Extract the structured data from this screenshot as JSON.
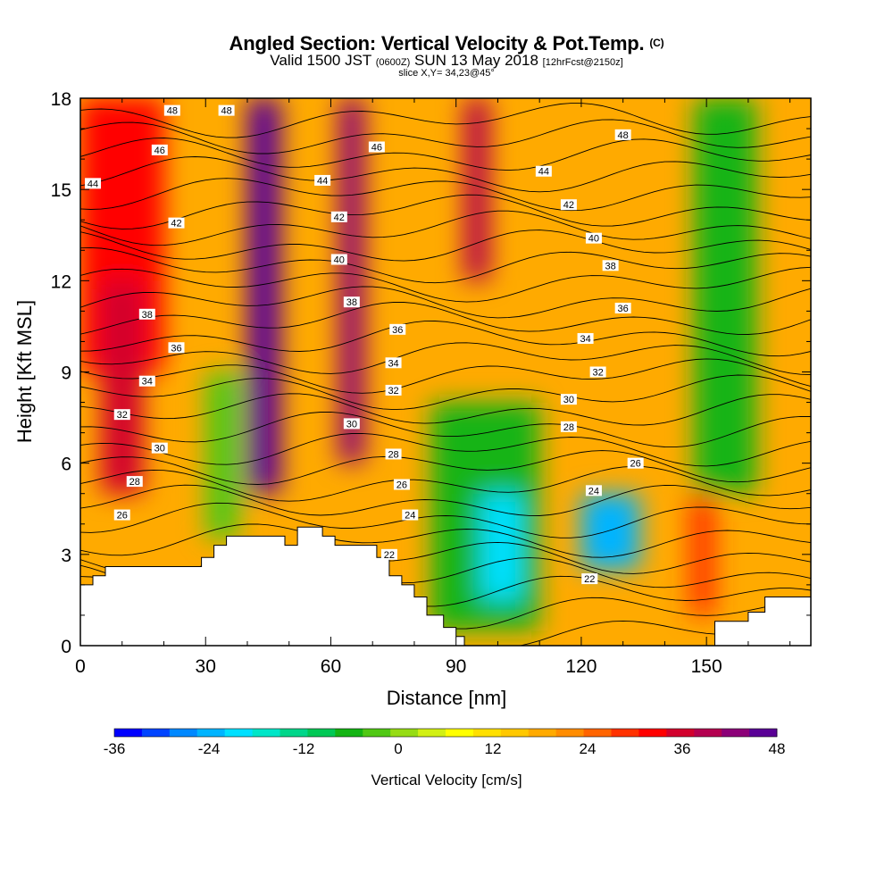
{
  "title": {
    "main": "Angled Section: Vertical Velocity & Pot.Temp.",
    "main_small": "(C)",
    "valid_prefix": "Valid 1500 JST",
    "valid_utc": "(0600Z)",
    "valid_date": "SUN 13 May 2018",
    "fcst": "[12hrFcst@2150z]",
    "slice": "slice X,Y= 34,23@45°"
  },
  "chart_data": {
    "type": "heatmap",
    "title": "Angled Section: Vertical Velocity & Pot.Temp. (C)",
    "xlabel": "Distance [nm]",
    "ylabel": "Height [Kft MSL]",
    "xlim": [
      0,
      175
    ],
    "ylim": [
      0,
      18
    ],
    "x_ticks": [
      "0",
      "30",
      "60",
      "90",
      "120",
      "150"
    ],
    "y_ticks": [
      "0",
      "3",
      "6",
      "9",
      "12",
      "15",
      "18"
    ],
    "x_tick_values": [
      0,
      30,
      60,
      90,
      120,
      150
    ],
    "y_tick_values": [
      0,
      3,
      6,
      9,
      12,
      15,
      18
    ],
    "colorbar": {
      "label": "Vertical Velocity [cm/s]",
      "tick_labels": [
        "-36",
        "-24",
        "-12",
        "0",
        "12",
        "24",
        "36",
        "48"
      ],
      "tick_values": [
        -36,
        -24,
        -12,
        0,
        12,
        24,
        36,
        48
      ],
      "min": -36,
      "max": 48,
      "colors": [
        "#0000ff",
        "#0044ff",
        "#0088ff",
        "#00b4ff",
        "#00e0ff",
        "#00e6c8",
        "#00d68a",
        "#00c855",
        "#14b414",
        "#50c814",
        "#96dc14",
        "#d2f014",
        "#ffff00",
        "#ffe000",
        "#ffc800",
        "#ffaa00",
        "#ff8c00",
        "#ff6400",
        "#ff3200",
        "#ff0000",
        "#d2002d",
        "#b40050",
        "#8c0078",
        "#5a0096"
      ]
    },
    "velocity_cells": [
      {
        "x": [
          0,
          20
        ],
        "z": [
          9,
          18
        ],
        "w": 33
      },
      {
        "x": [
          5,
          15
        ],
        "z": [
          5,
          12
        ],
        "w": 36
      },
      {
        "x": [
          30,
          38
        ],
        "z": [
          3.5,
          9
        ],
        "w": -2
      },
      {
        "x": [
          40,
          48
        ],
        "z": [
          5,
          18
        ],
        "w": 45
      },
      {
        "x": [
          62,
          68
        ],
        "z": [
          6,
          18
        ],
        "w": 42
      },
      {
        "x": [
          84,
          110
        ],
        "z": [
          0.5,
          8
        ],
        "w": -6
      },
      {
        "x": [
          96,
          106
        ],
        "z": [
          1.5,
          5
        ],
        "w": -22
      },
      {
        "x": [
          92,
          98
        ],
        "z": [
          12,
          18
        ],
        "w": 40
      },
      {
        "x": [
          120,
          134
        ],
        "z": [
          2.5,
          5
        ],
        "w": -24
      },
      {
        "x": [
          146,
          152
        ],
        "z": [
          1,
          5
        ],
        "w": 30
      },
      {
        "x": [
          147,
          162
        ],
        "z": [
          5,
          18
        ],
        "w": -6
      }
    ],
    "theta_contour_labels": [
      "48",
      "48",
      "46",
      "44",
      "42",
      "38",
      "36",
      "34",
      "32",
      "30",
      "28",
      "26",
      "44",
      "42",
      "40",
      "38",
      "30",
      "46",
      "36",
      "34",
      "32",
      "28",
      "26",
      "24",
      "22",
      "44",
      "42",
      "40",
      "38",
      "36",
      "34",
      "32",
      "30",
      "28",
      "26",
      "24",
      "48",
      "22"
    ],
    "theta_labels": [
      {
        "text": "48",
        "x": 22,
        "z": 17.6
      },
      {
        "text": "48",
        "x": 35,
        "z": 17.6
      },
      {
        "text": "46",
        "x": 19,
        "z": 16.3
      },
      {
        "text": "44",
        "x": 3,
        "z": 15.2
      },
      {
        "text": "42",
        "x": 23,
        "z": 13.9
      },
      {
        "text": "38",
        "x": 16,
        "z": 10.9
      },
      {
        "text": "36",
        "x": 23,
        "z": 9.8
      },
      {
        "text": "34",
        "x": 16,
        "z": 8.7
      },
      {
        "text": "32",
        "x": 10,
        "z": 7.6
      },
      {
        "text": "30",
        "x": 19,
        "z": 6.5
      },
      {
        "text": "28",
        "x": 13,
        "z": 5.4
      },
      {
        "text": "26",
        "x": 10,
        "z": 4.3
      },
      {
        "text": "44",
        "x": 58,
        "z": 15.3
      },
      {
        "text": "42",
        "x": 62,
        "z": 14.1
      },
      {
        "text": "40",
        "x": 62,
        "z": 12.7
      },
      {
        "text": "38",
        "x": 65,
        "z": 11.3
      },
      {
        "text": "30",
        "x": 65,
        "z": 7.3
      },
      {
        "text": "46",
        "x": 71,
        "z": 16.4
      },
      {
        "text": "36",
        "x": 76,
        "z": 10.4
      },
      {
        "text": "34",
        "x": 75,
        "z": 9.3
      },
      {
        "text": "32",
        "x": 75,
        "z": 8.4
      },
      {
        "text": "28",
        "x": 75,
        "z": 6.3
      },
      {
        "text": "26",
        "x": 77,
        "z": 5.3
      },
      {
        "text": "24",
        "x": 79,
        "z": 4.3
      },
      {
        "text": "22",
        "x": 74,
        "z": 3.0
      },
      {
        "text": "44",
        "x": 111,
        "z": 15.6
      },
      {
        "text": "42",
        "x": 117,
        "z": 14.5
      },
      {
        "text": "40",
        "x": 123,
        "z": 13.4
      },
      {
        "text": "38",
        "x": 127,
        "z": 12.5
      },
      {
        "text": "36",
        "x": 130,
        "z": 11.1
      },
      {
        "text": "34",
        "x": 121,
        "z": 10.1
      },
      {
        "text": "32",
        "x": 124,
        "z": 9.0
      },
      {
        "text": "30",
        "x": 117,
        "z": 8.1
      },
      {
        "text": "28",
        "x": 117,
        "z": 7.2
      },
      {
        "text": "26",
        "x": 133,
        "z": 6.0
      },
      {
        "text": "24",
        "x": 123,
        "z": 5.1
      },
      {
        "text": "48",
        "x": 130,
        "z": 16.8
      },
      {
        "text": "22",
        "x": 122,
        "z": 2.2
      }
    ],
    "theta_contours": [
      20,
      21,
      22,
      23,
      24,
      25,
      26,
      27,
      28,
      29,
      30,
      31,
      32,
      33,
      34,
      35,
      36,
      37,
      38,
      39,
      40,
      41,
      42,
      43,
      44,
      45,
      46,
      47,
      48
    ],
    "terrain": [
      [
        0,
        2
      ],
      [
        3,
        2
      ],
      [
        3,
        2.3
      ],
      [
        6,
        2.3
      ],
      [
        6,
        2.6
      ],
      [
        29,
        2.6
      ],
      [
        29,
        2.9
      ],
      [
        32,
        2.9
      ],
      [
        32,
        3.3
      ],
      [
        35,
        3.3
      ],
      [
        35,
        3.6
      ],
      [
        49,
        3.6
      ],
      [
        49,
        3.3
      ],
      [
        52,
        3.3
      ],
      [
        52,
        3.9
      ],
      [
        58,
        3.9
      ],
      [
        58,
        3.6
      ],
      [
        61,
        3.6
      ],
      [
        61,
        3.3
      ],
      [
        71,
        3.3
      ],
      [
        71,
        2.9
      ],
      [
        74,
        2.9
      ],
      [
        74,
        2.3
      ],
      [
        77,
        2.3
      ],
      [
        77,
        2
      ],
      [
        80,
        2
      ],
      [
        80,
        1.6
      ],
      [
        83,
        1.6
      ],
      [
        83,
        1
      ],
      [
        87,
        1
      ],
      [
        87,
        0.6
      ],
      [
        90,
        0.6
      ],
      [
        90,
        0.3
      ],
      [
        92,
        0.3
      ],
      [
        92,
        0
      ],
      [
        152,
        0
      ],
      [
        152,
        0.8
      ],
      [
        160,
        0.8
      ],
      [
        160,
        1.1
      ],
      [
        164,
        1.1
      ],
      [
        164,
        1.6
      ],
      [
        175,
        1.6
      ]
    ]
  }
}
